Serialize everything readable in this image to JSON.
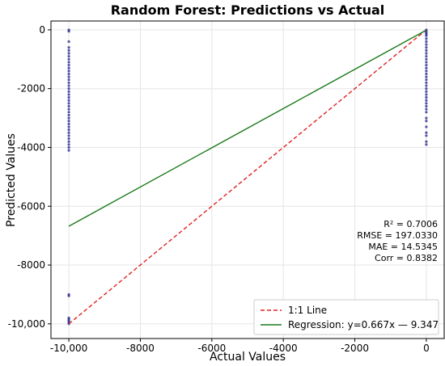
{
  "chart_data": {
    "type": "scatter",
    "title": "Random Forest: Predictions vs Actual",
    "xlabel": "Actual Values",
    "ylabel": "Predicted Values",
    "xlim": [
      -10500,
      500
    ],
    "ylim": [
      -10500,
      300
    ],
    "xticks": [
      -10000,
      -8000,
      -6000,
      -4000,
      -2000,
      0
    ],
    "xtick_labels": [
      "-10,000",
      "-8000",
      "-6000",
      "-4000",
      "-2000",
      "0"
    ],
    "yticks": [
      -10000,
      -8000,
      -6000,
      -4000,
      -2000,
      0
    ],
    "ytick_labels": [
      "-10,000",
      "-8000",
      "-6000",
      "-4000",
      "-2000",
      "0"
    ],
    "grid": true,
    "series": [
      {
        "type": "scatter",
        "color": "#1f1f8f",
        "points": [
          [
            -10000,
            -10000
          ],
          [
            -10000,
            -9950
          ],
          [
            -10000,
            -9900
          ],
          [
            -10000,
            -9850
          ],
          [
            -10000,
            -9800
          ],
          [
            -10000,
            -9050
          ],
          [
            -10000,
            -9000
          ],
          [
            -10000,
            -4100
          ],
          [
            -10000,
            -4000
          ],
          [
            -10000,
            -3900
          ],
          [
            -10000,
            -3800
          ],
          [
            -10000,
            -3700
          ],
          [
            -10000,
            -3600
          ],
          [
            -10000,
            -3500
          ],
          [
            -10000,
            -3400
          ],
          [
            -10000,
            -3300
          ],
          [
            -10000,
            -3200
          ],
          [
            -10000,
            -3100
          ],
          [
            -10000,
            -3000
          ],
          [
            -10000,
            -2900
          ],
          [
            -10000,
            -2800
          ],
          [
            -10000,
            -2700
          ],
          [
            -10000,
            -2600
          ],
          [
            -10000,
            -2500
          ],
          [
            -10000,
            -2400
          ],
          [
            -10000,
            -2300
          ],
          [
            -10000,
            -2200
          ],
          [
            -10000,
            -2100
          ],
          [
            -10000,
            -2000
          ],
          [
            -10000,
            -1900
          ],
          [
            -10000,
            -1800
          ],
          [
            -10000,
            -1700
          ],
          [
            -10000,
            -1600
          ],
          [
            -10000,
            -1500
          ],
          [
            -10000,
            -1400
          ],
          [
            -10000,
            -1300
          ],
          [
            -10000,
            -1200
          ],
          [
            -10000,
            -1100
          ],
          [
            -10000,
            -1000
          ],
          [
            -10000,
            -900
          ],
          [
            -10000,
            -800
          ],
          [
            -10000,
            -700
          ],
          [
            -10000,
            -600
          ],
          [
            -10000,
            -400
          ],
          [
            -10000,
            -50
          ],
          [
            -10000,
            0
          ],
          [
            0,
            0
          ],
          [
            0,
            -50
          ],
          [
            0,
            -100
          ],
          [
            0,
            -150
          ],
          [
            0,
            -200
          ],
          [
            0,
            -300
          ],
          [
            0,
            -400
          ],
          [
            0,
            -500
          ],
          [
            0,
            -600
          ],
          [
            0,
            -700
          ],
          [
            0,
            -800
          ],
          [
            0,
            -900
          ],
          [
            0,
            -1000
          ],
          [
            0,
            -1100
          ],
          [
            0,
            -1200
          ],
          [
            0,
            -1300
          ],
          [
            0,
            -1400
          ],
          [
            0,
            -1500
          ],
          [
            0,
            -1600
          ],
          [
            0,
            -1700
          ],
          [
            0,
            -1800
          ],
          [
            0,
            -1900
          ],
          [
            0,
            -2000
          ],
          [
            0,
            -2100
          ],
          [
            0,
            -2200
          ],
          [
            0,
            -2300
          ],
          [
            0,
            -2400
          ],
          [
            0,
            -2500
          ],
          [
            0,
            -2600
          ],
          [
            0,
            -2700
          ],
          [
            0,
            -2800
          ],
          [
            0,
            -3000
          ],
          [
            0,
            -3100
          ],
          [
            0,
            -3300
          ],
          [
            0,
            -3500
          ],
          [
            0,
            -3600
          ],
          [
            0,
            -3800
          ],
          [
            0,
            -3900
          ]
        ]
      },
      {
        "type": "line",
        "name": "1:1 Line",
        "color": "#e02020",
        "dash": true,
        "x": [
          -10000,
          0
        ],
        "y": [
          -10000,
          0
        ]
      },
      {
        "type": "line",
        "name": "Regression: y=0.667x — 9.347",
        "color": "#1a7a1a",
        "dash": false,
        "x": [
          -10000,
          0
        ],
        "y": [
          -6679.347,
          -9.347
        ]
      }
    ],
    "stats": [
      "R² = 0.7006",
      "RMSE = 197.0330",
      "MAE = 14.5345",
      "Corr = 0.8382"
    ],
    "stats_placement": "right-middle",
    "legend_placement": "bottom-right"
  }
}
